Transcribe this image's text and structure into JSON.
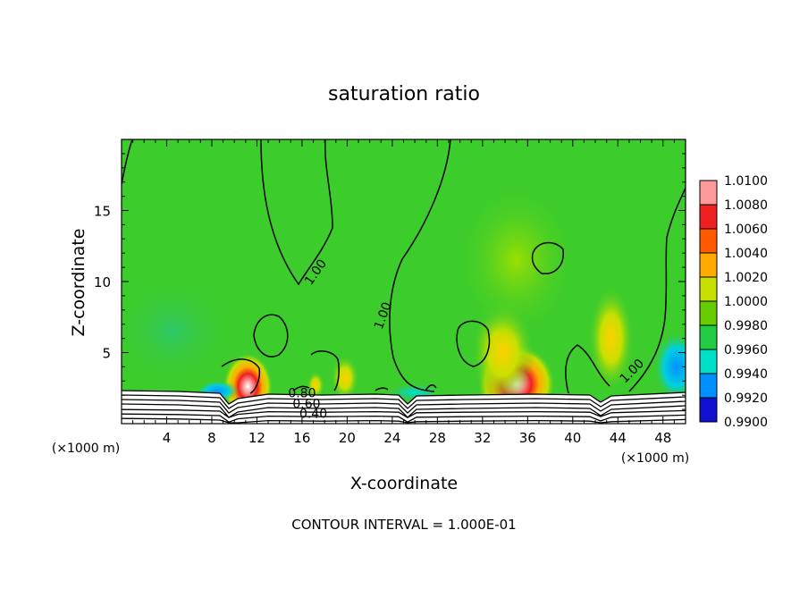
{
  "chart_data": {
    "type": "heatmap",
    "title": "saturation ratio",
    "xlabel": "X-coordinate",
    "ylabel": "Z-coordinate",
    "x_unit": "(×1000 m)",
    "x_unit_right": "(×1000 m)",
    "footer": "CONTOUR INTERVAL = 1.000E-01",
    "xlim": [
      0,
      50
    ],
    "ylim": [
      0,
      20
    ],
    "xticks": [
      4,
      8,
      12,
      16,
      20,
      24,
      28,
      32,
      36,
      40,
      44,
      48
    ],
    "yticks": [
      5,
      10,
      15
    ],
    "contour_labels": [
      {
        "text": "1.00",
        "x": 17.5,
        "z": 10.5
      },
      {
        "text": "1.00",
        "x": 23.5,
        "z": 7.5
      },
      {
        "text": "1.00",
        "x": 45.5,
        "z": 3.5
      },
      {
        "text": "0.80",
        "x": 16.0,
        "z": 1.85
      },
      {
        "text": "0.60",
        "x": 16.4,
        "z": 1.1
      },
      {
        "text": "0.40",
        "x": 17.0,
        "z": 0.4
      }
    ],
    "colorbar": {
      "levels": [
        "1.0100",
        "1.0080",
        "1.0060",
        "1.0040",
        "1.0020",
        "1.0000",
        "0.9980",
        "0.9960",
        "0.9940",
        "0.9920",
        "0.9900"
      ],
      "colors": [
        "#ff9a9a",
        "#ee2020",
        "#ff5a00",
        "#ffaa00",
        "#c8e000",
        "#66cc00",
        "#22cc44",
        "#00e0c8",
        "#0090ff",
        "#1010d0",
        "#5a1aa0"
      ]
    },
    "field_colors": {
      "background": "#3ccc2c",
      "surface": "#ffffff"
    },
    "features": [
      {
        "x": 11.2,
        "z": 2.6,
        "value": 1.008
      },
      {
        "x": 35.0,
        "z": 2.8,
        "value": 1.01
      },
      {
        "x": 33.8,
        "z": 5.0,
        "value": 1.004
      },
      {
        "x": 43.4,
        "z": 6.0,
        "value": 1.003
      },
      {
        "x": 19.8,
        "z": 3.2,
        "value": 1.004
      },
      {
        "x": 17.2,
        "z": 2.7,
        "value": 1.006
      },
      {
        "x": 49.2,
        "z": 4.0,
        "value": 0.996
      },
      {
        "x": 4.5,
        "z": 6.5,
        "value": 0.9985
      },
      {
        "x": 35.0,
        "z": 11.5,
        "value": 1.002
      },
      {
        "x": 8.5,
        "z": 2.3,
        "value": 0.994
      },
      {
        "x": 26.0,
        "z": 2.2,
        "value": 0.994
      }
    ]
  }
}
